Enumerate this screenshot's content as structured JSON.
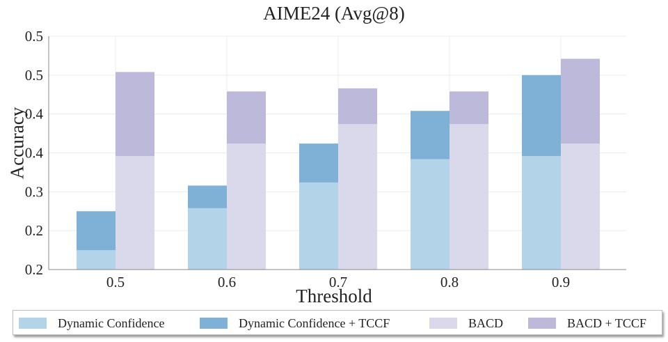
{
  "chart_data": {
    "type": "bar",
    "title": "AIME24 (Avg@8)",
    "xlabel": "Threshold",
    "ylabel": "Accuracy",
    "categories": [
      "0.5",
      "0.6",
      "0.7",
      "0.8",
      "0.9"
    ],
    "ytick_labels": [
      "0.2",
      "0.2",
      "0.3",
      "0.4",
      "0.4",
      "0.5",
      "0.5"
    ],
    "ylim": [
      0.2,
      0.5
    ],
    "grid": true,
    "legend_position": "bottom",
    "series": [
      {
        "name": "Dynamic Confidence",
        "color": "#b3d3e8",
        "group": "left",
        "values": [
          0.225,
          0.279,
          0.312,
          0.342,
          0.346
        ]
      },
      {
        "name": "Dynamic Confidence + TCCF",
        "color": "#7fb1d6",
        "group": "left",
        "values": [
          0.275,
          0.308,
          0.362,
          0.404,
          0.45
        ]
      },
      {
        "name": "BACD",
        "color": "#dad9ec",
        "group": "right",
        "values": [
          0.346,
          0.362,
          0.387,
          0.387,
          0.362
        ]
      },
      {
        "name": "BACD + TCCF",
        "color": "#bdb9db",
        "group": "right",
        "values": [
          0.454,
          0.429,
          0.433,
          0.429,
          0.471
        ]
      }
    ]
  }
}
